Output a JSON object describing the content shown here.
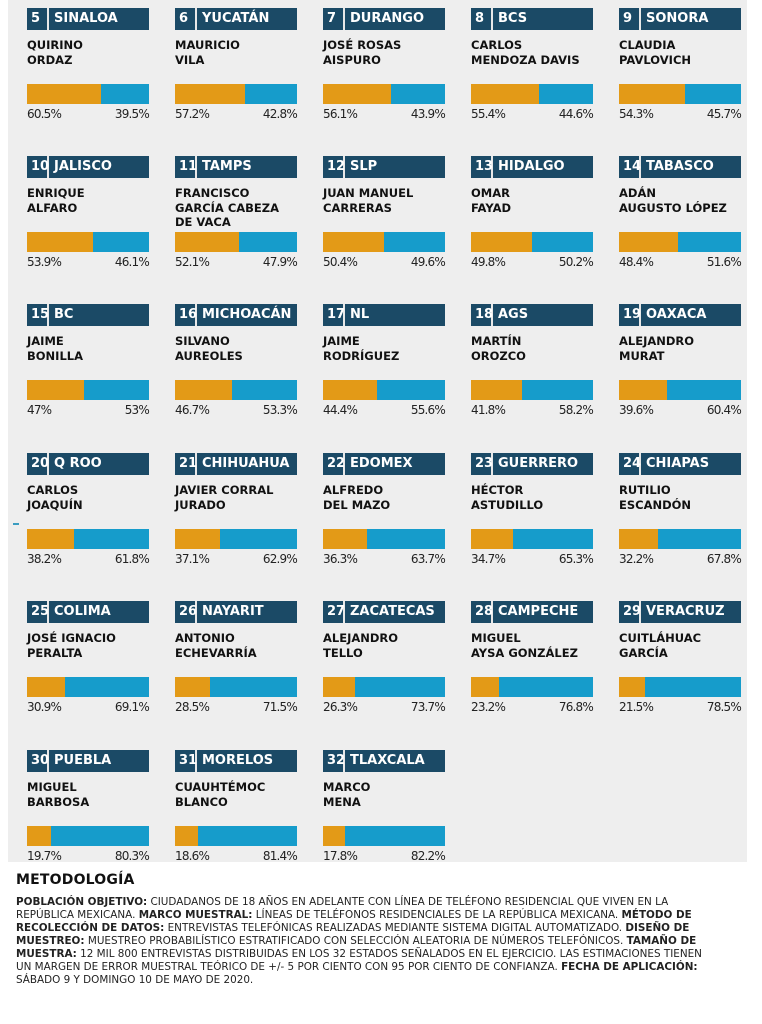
{
  "colors": {
    "header_bg": "#1b4a66",
    "series_a": "#e39a17",
    "series_b": "#169ccb",
    "panel_bg": "#eeeeee"
  },
  "chart_data": {
    "type": "bar",
    "orientation": "horizontal-stacked-100",
    "series_names": [],
    "states": [
      {
        "rank": "5",
        "state": "SINALOA",
        "name": "QUIRINO\nORDAZ",
        "a": 60.5,
        "b": 39.5,
        "a_label": "60.5%",
        "b_label": "39.5%"
      },
      {
        "rank": "6",
        "state": "YUCATÁN",
        "name": "MAURICIO\nVILA",
        "a": 57.2,
        "b": 42.8,
        "a_label": "57.2%",
        "b_label": "42.8%"
      },
      {
        "rank": "7",
        "state": "DURANGO",
        "name": "JOSÉ ROSAS\nAISPURO",
        "a": 56.1,
        "b": 43.9,
        "a_label": "56.1%",
        "b_label": "43.9%"
      },
      {
        "rank": "8",
        "state": "BCS",
        "name": "CARLOS\nMENDOZA DAVIS",
        "a": 55.4,
        "b": 44.6,
        "a_label": "55.4%",
        "b_label": "44.6%"
      },
      {
        "rank": "9",
        "state": "SONORA",
        "name": "CLAUDIA\nPAVLOVICH",
        "a": 54.3,
        "b": 45.7,
        "a_label": "54.3%",
        "b_label": "45.7%"
      },
      {
        "rank": "10",
        "state": "JALISCO",
        "name": "ENRIQUE\nALFARO",
        "a": 53.9,
        "b": 46.1,
        "a_label": "53.9%",
        "b_label": "46.1%"
      },
      {
        "rank": "11",
        "state": "TAMPS",
        "name": "FRANCISCO\nGARCÍA CABEZA\nDE VACA",
        "a": 52.1,
        "b": 47.9,
        "a_label": "52.1%",
        "b_label": "47.9%"
      },
      {
        "rank": "12",
        "state": "SLP",
        "name": "JUAN MANUEL\nCARRERAS",
        "a": 50.4,
        "b": 49.6,
        "a_label": "50.4%",
        "b_label": "49.6%"
      },
      {
        "rank": "13",
        "state": "HIDALGO",
        "name": "OMAR\nFAYAD",
        "a": 49.8,
        "b": 50.2,
        "a_label": "49.8%",
        "b_label": "50.2%"
      },
      {
        "rank": "14",
        "state": "TABASCO",
        "name": "ADÁN\nAUGUSTO LÓPEZ",
        "a": 48.4,
        "b": 51.6,
        "a_label": "48.4%",
        "b_label": "51.6%"
      },
      {
        "rank": "15",
        "state": "BC",
        "name": "JAIME\nBONILLA",
        "a": 47,
        "b": 53,
        "a_label": "47%",
        "b_label": "53%"
      },
      {
        "rank": "16",
        "state": "MICHOACÁN",
        "name": "SILVANO\nAUREOLES",
        "a": 46.7,
        "b": 53.3,
        "a_label": "46.7%",
        "b_label": "53.3%"
      },
      {
        "rank": "17",
        "state": "NL",
        "name": "JAIME\nRODRÍGUEZ",
        "a": 44.4,
        "b": 55.6,
        "a_label": "44.4%",
        "b_label": "55.6%"
      },
      {
        "rank": "18",
        "state": "AGS",
        "name": "MARTÍN\nOROZCO",
        "a": 41.8,
        "b": 58.2,
        "a_label": "41.8%",
        "b_label": "58.2%"
      },
      {
        "rank": "19",
        "state": "OAXACA",
        "name": "ALEJANDRO\nMURAT",
        "a": 39.6,
        "b": 60.4,
        "a_label": "39.6%",
        "b_label": "60.4%"
      },
      {
        "rank": "20",
        "state": "Q ROO",
        "name": "CARLOS\nJOAQUÍN",
        "a": 38.2,
        "b": 61.8,
        "a_label": "38.2%",
        "b_label": "61.8%"
      },
      {
        "rank": "21",
        "state": "CHIHUAHUA",
        "name": "JAVIER CORRAL\nJURADO",
        "a": 37.1,
        "b": 62.9,
        "a_label": "37.1%",
        "b_label": "62.9%"
      },
      {
        "rank": "22",
        "state": "EDOMEX",
        "name": "ALFREDO\nDEL MAZO",
        "a": 36.3,
        "b": 63.7,
        "a_label": "36.3%",
        "b_label": "63.7%"
      },
      {
        "rank": "23",
        "state": "GUERRERO",
        "name": "HÉCTOR\nASTUDILLO",
        "a": 34.7,
        "b": 65.3,
        "a_label": "34.7%",
        "b_label": "65.3%"
      },
      {
        "rank": "24",
        "state": "CHIAPAS",
        "name": "RUTILIO\nESCANDÓN",
        "a": 32.2,
        "b": 67.8,
        "a_label": "32.2%",
        "b_label": "67.8%"
      },
      {
        "rank": "25",
        "state": "COLIMA",
        "name": "JOSÉ IGNACIO\nPERALTA",
        "a": 30.9,
        "b": 69.1,
        "a_label": "30.9%",
        "b_label": "69.1%"
      },
      {
        "rank": "26",
        "state": "NAYARIT",
        "name": "ANTONIO\nECHEVARRÍA",
        "a": 28.5,
        "b": 71.5,
        "a_label": "28.5%",
        "b_label": "71.5%"
      },
      {
        "rank": "27",
        "state": "ZACATECAS",
        "name": "ALEJANDRO\nTELLO",
        "a": 26.3,
        "b": 73.7,
        "a_label": "26.3%",
        "b_label": "73.7%"
      },
      {
        "rank": "28",
        "state": "CAMPECHE",
        "name": "MIGUEL\nAYSA GONZÁLEZ",
        "a": 23.2,
        "b": 76.8,
        "a_label": "23.2%",
        "b_label": "76.8%"
      },
      {
        "rank": "29",
        "state": "VERACRUZ",
        "name": "CUITLÁHUAC\nGARCÍA",
        "a": 21.5,
        "b": 78.5,
        "a_label": "21.5%",
        "b_label": "78.5%"
      },
      {
        "rank": "30",
        "state": "PUEBLA",
        "name": "MIGUEL\nBARBOSA",
        "a": 19.7,
        "b": 80.3,
        "a_label": "19.7%",
        "b_label": "80.3%"
      },
      {
        "rank": "31",
        "state": "MORELOS",
        "name": "CUAUHTÉMOC\nBLANCO",
        "a": 18.6,
        "b": 81.4,
        "a_label": "18.6%",
        "b_label": "81.4%"
      },
      {
        "rank": "32",
        "state": "TLAXCALA",
        "name": "MARCO\nMENA",
        "a": 17.8,
        "b": 82.2,
        "a_label": "17.8%",
        "b_label": "82.2%"
      }
    ]
  },
  "methodology": {
    "title": "METODOLOGÍA",
    "items": [
      {
        "label": "POBLACIÓN OBJETIVO:",
        "text": " CIUDADANOS DE 18 AÑOS EN ADELANTE CON LÍNEA DE TELÉFONO RESIDENCIAL QUE VIVEN EN LA REPÚBLICA MEXICANA. "
      },
      {
        "label": "MARCO MUESTRAL:",
        "text": " LÍNEAS DE TELÉFONOS RESIDENCIALES DE LA REPÚBLICA MEXICANA. "
      },
      {
        "label": "MÉTODO DE RECOLECCIÓN DE DATOS:",
        "text": " ENTREVISTAS TELEFÓNICAS REALIZADAS MEDIANTE SISTEMA DIGITAL AUTOMATIZADO. "
      },
      {
        "label": "DISEÑO DE MUESTREO:",
        "text": " MUESTREO PROBABILÍSTICO ESTRATIFICADO CON SELECCIÓN ALEATORIA DE NÚMEROS TELEFÓNICOS. "
      },
      {
        "label": "TAMAÑO DE MUESTRA:",
        "text": " 12 MIL 800 ENTREVISTAS DISTRIBUIDAS EN LOS 32 ESTADOS SEÑALADOS EN EL EJERCICIO. LAS ESTIMACIONES TIENEN UN MARGEN DE ERROR MUESTRAL TEÓRICO DE +/- 5 POR CIENTO CON 95 POR CIENTO DE CONFIANZA. "
      },
      {
        "label": "FECHA DE APLICACIÓN:",
        "text": " SÁBADO 9 Y DOMINGO 10 DE MAYO DE 2020."
      }
    ]
  }
}
